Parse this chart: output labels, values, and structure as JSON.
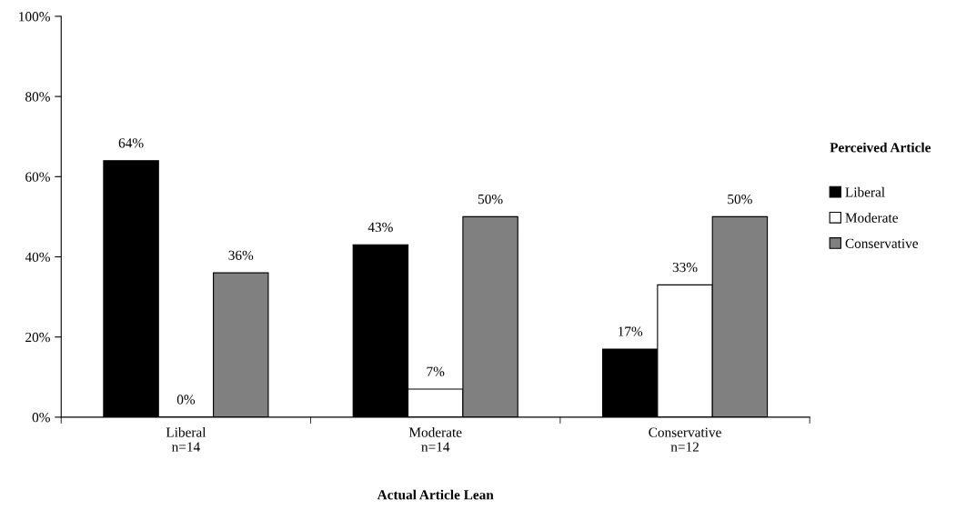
{
  "chart_data": {
    "type": "bar",
    "categories": [
      "Liberal\nn=14",
      "Moderate\nn=14",
      "Conservative\nn=12"
    ],
    "xlabel": "Actual Article Lean",
    "legend_title": "Perceived Article",
    "series": [
      {
        "name": "Liberal",
        "color": "#000000",
        "values": [
          64,
          43,
          17
        ],
        "value_labels": [
          "64%",
          "43%",
          "17%"
        ]
      },
      {
        "name": "Moderate",
        "color": "#ffffff",
        "values": [
          0,
          7,
          33
        ],
        "value_labels": [
          "0%",
          "7%",
          "33%"
        ]
      },
      {
        "name": "Conservative",
        "color": "#808080",
        "values": [
          36,
          50,
          50
        ],
        "value_labels": [
          "36%",
          "50%",
          "50%"
        ]
      }
    ],
    "ylim": [
      0,
      100
    ],
    "yticks": [
      {
        "value": 0,
        "label": "0%"
      },
      {
        "value": 20,
        "label": "20%"
      },
      {
        "value": 40,
        "label": "40%"
      },
      {
        "value": 60,
        "label": "60%"
      },
      {
        "value": 80,
        "label": "80%"
      },
      {
        "value": 100,
        "label": "100%"
      }
    ],
    "grid": false,
    "legend": "right"
  }
}
